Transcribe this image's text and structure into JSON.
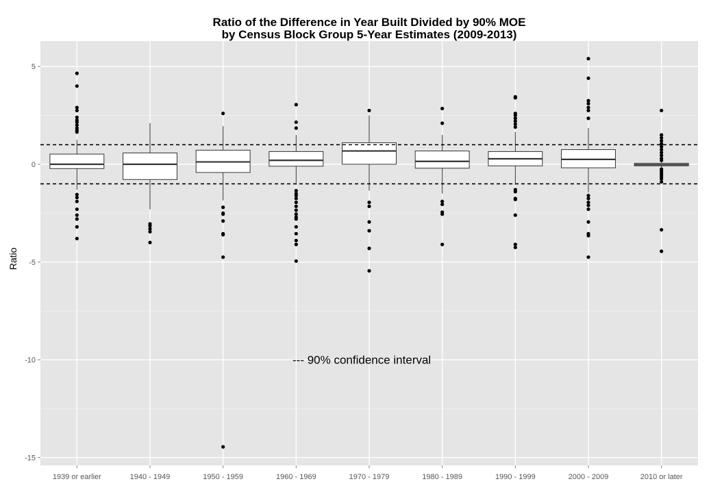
{
  "chart_data": {
    "type": "boxplot",
    "title": [
      "Ratio of the Difference in Year Built Divided by 90% MOE",
      "by Census Block Group 5-Year Estimates (2009-2013)"
    ],
    "ylabel": "Ratio",
    "xlabel": "",
    "ylim": [
      -15.4,
      6.3
    ],
    "yticks": [
      5,
      0,
      -5,
      -10,
      -15
    ],
    "grid": true,
    "reference_lines": [
      1,
      -1
    ],
    "annotation": {
      "text": "--- 90% confidence interval",
      "x": 3.95,
      "y": -10
    },
    "colors": {
      "panel": "#e5e5e5",
      "grid_major": "#ffffff",
      "grid_minor": "#f2f2f2",
      "box_fill": "#ffffff",
      "stroke": "#333333",
      "point": "#000000"
    },
    "categories": [
      "1939 or earlier",
      "1940 - 1949",
      "1950 - 1959",
      "1960 - 1969",
      "1970 - 1979",
      "1980 - 1989",
      "1990 - 1999",
      "2000 - 2009",
      "2010 or later"
    ],
    "boxes": [
      {
        "q1": -0.22,
        "median": 0.0,
        "q3": 0.52,
        "whisker_low": -1.3,
        "whisker_high": 1.25,
        "outliers": [
          4.65,
          4.0,
          2.9,
          2.75,
          2.4,
          2.25,
          2.15,
          2.0,
          1.85,
          1.75,
          1.65,
          -1.55,
          -1.7,
          -1.9,
          -2.3,
          -2.6,
          -2.8,
          -3.2,
          -3.8
        ]
      },
      {
        "q1": -0.78,
        "median": 0.0,
        "q3": 0.58,
        "whisker_low": -2.3,
        "whisker_high": 2.1,
        "outliers": [
          -3.05,
          -3.15,
          -3.3,
          -3.45,
          -4.0
        ]
      },
      {
        "q1": -0.42,
        "median": 0.12,
        "q3": 0.72,
        "whisker_low": -1.85,
        "whisker_high": 1.95,
        "outliers": [
          2.6,
          -2.2,
          -2.5,
          -2.55,
          -2.9,
          -3.55,
          -3.6,
          -4.75,
          -14.45
        ]
      },
      {
        "q1": -0.1,
        "median": 0.2,
        "q3": 0.65,
        "whisker_low": -1.05,
        "whisker_high": 1.5,
        "outliers": [
          3.05,
          2.15,
          1.85,
          -1.35,
          -1.5,
          -1.6,
          -1.75,
          -1.95,
          -2.15,
          -2.35,
          -2.55,
          -2.7,
          -2.8,
          -3.2,
          -3.55,
          -3.9,
          -4.1,
          -4.95
        ]
      },
      {
        "q1": 0.0,
        "median": 0.68,
        "q3": 1.1,
        "whisker_low": -1.35,
        "whisker_high": 2.5,
        "outliers": [
          2.75,
          -1.95,
          -2.15,
          -2.95,
          -3.4,
          -4.3,
          -5.45
        ]
      },
      {
        "q1": -0.2,
        "median": 0.15,
        "q3": 0.68,
        "whisker_low": -1.5,
        "whisker_high": 1.5,
        "outliers": [
          2.85,
          2.1,
          -1.9,
          -2.05,
          -2.45,
          -2.55,
          -4.1
        ]
      },
      {
        "q1": -0.08,
        "median": 0.28,
        "q3": 0.65,
        "whisker_low": -1.05,
        "whisker_high": 1.65,
        "outliers": [
          3.45,
          3.4,
          2.6,
          2.5,
          2.35,
          2.2,
          2.05,
          1.9,
          -1.3,
          -1.4,
          -1.75,
          -1.8,
          -2.6,
          -4.1,
          -4.25
        ]
      },
      {
        "q1": -0.18,
        "median": 0.25,
        "q3": 0.75,
        "whisker_low": -1.45,
        "whisker_high": 1.85,
        "outliers": [
          5.4,
          4.4,
          3.25,
          3.1,
          2.9,
          2.75,
          2.35,
          -1.6,
          -1.75,
          -1.95,
          -2.1,
          -2.3,
          -2.95,
          -3.55,
          -3.65,
          -4.75
        ]
      },
      {
        "q1": -0.08,
        "median": -0.02,
        "q3": 0.05,
        "whisker_low": -0.15,
        "whisker_high": 0.1,
        "outliers": [
          2.75,
          1.5,
          1.35,
          1.2,
          1.05,
          0.9,
          0.75,
          0.6,
          0.45,
          0.3,
          0.2,
          -0.25,
          -0.35,
          -0.45,
          -0.55,
          -0.65,
          -0.75,
          -0.9,
          -3.35,
          -4.45
        ]
      }
    ]
  }
}
